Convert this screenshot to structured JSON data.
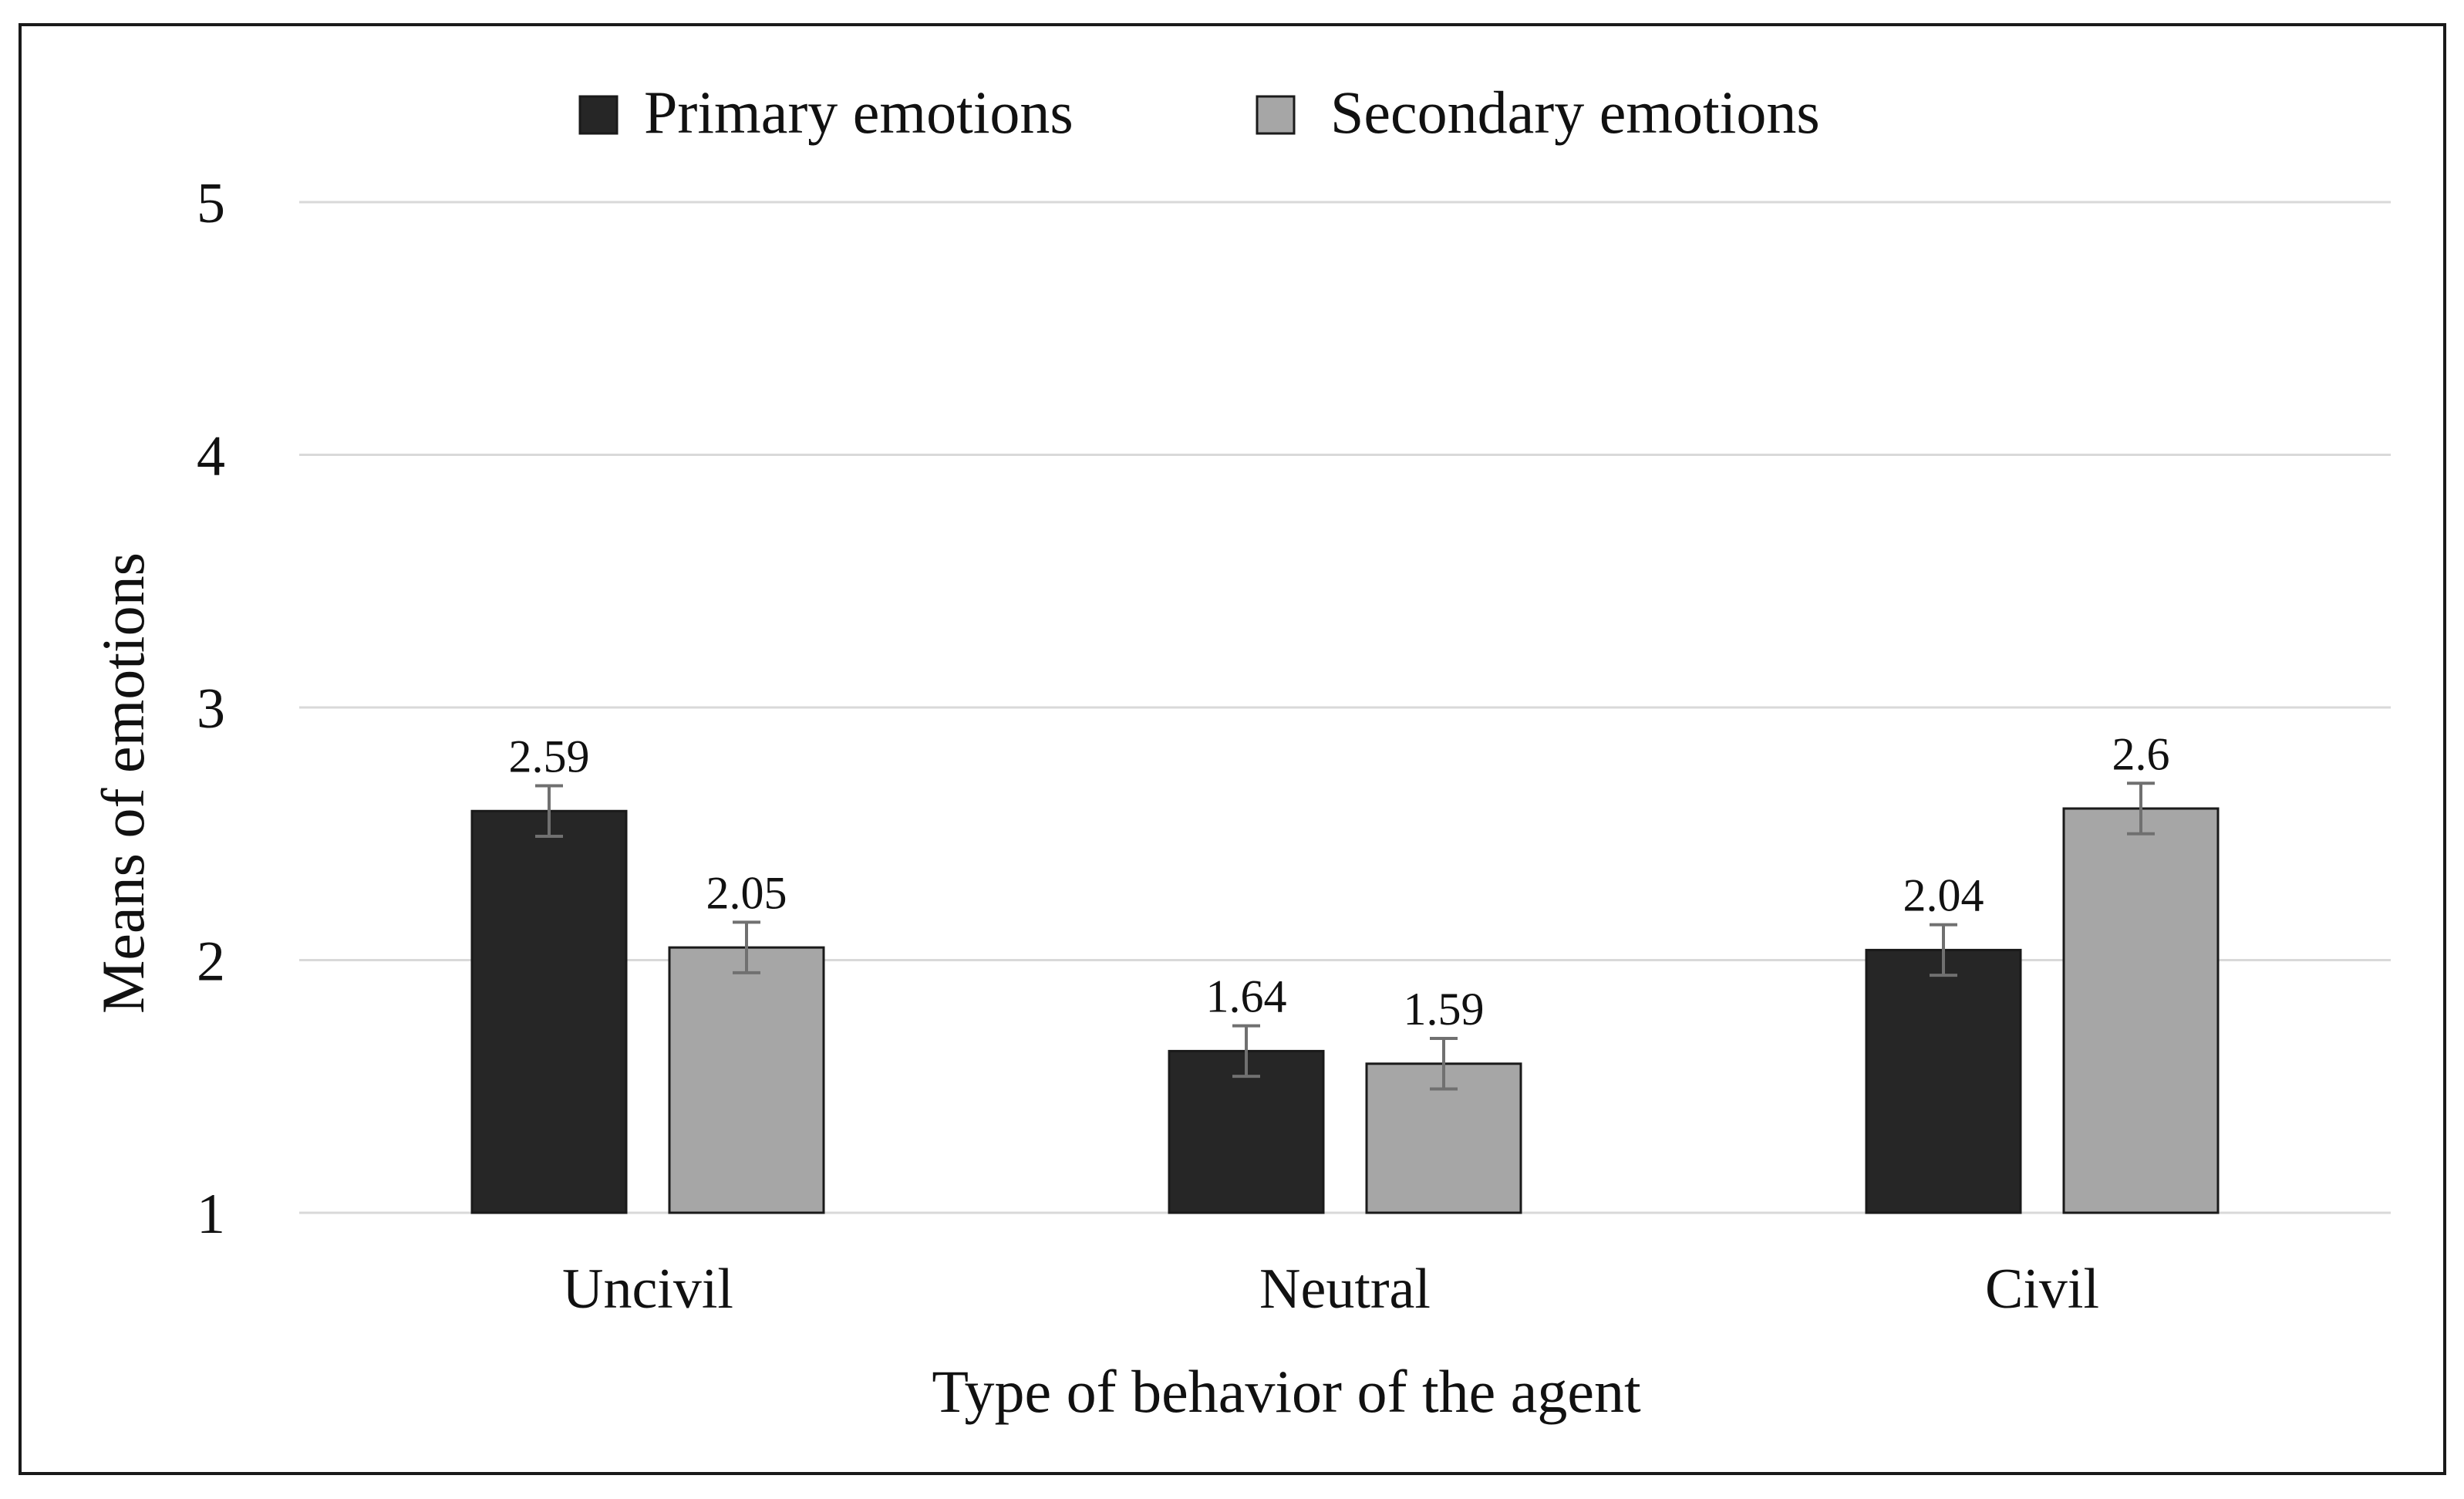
{
  "chart_data": {
    "type": "bar",
    "categories": [
      "Uncivil",
      "Neutral",
      "Civil"
    ],
    "series": [
      {
        "name": "Primary emotions",
        "color": "#262626",
        "values": [
          2.59,
          1.64,
          2.04
        ],
        "labels": [
          "2.59",
          "1.64",
          "2.04"
        ],
        "error": [
          0.1,
          0.1,
          0.1
        ]
      },
      {
        "name": "Secondary emotions",
        "color": "#a6a6a6",
        "values": [
          2.05,
          1.59,
          2.6
        ],
        "labels": [
          "2.05",
          "1.59",
          "2.6"
        ],
        "error": [
          0.1,
          0.1,
          0.1
        ]
      }
    ],
    "xlabel": "Type of behavior of the agent",
    "ylabel": "Means of emotions",
    "ylim": [
      1,
      5
    ],
    "yticks": [
      "1",
      "2",
      "3",
      "4",
      "5"
    ],
    "grid": true,
    "legend_position": "top-center"
  }
}
